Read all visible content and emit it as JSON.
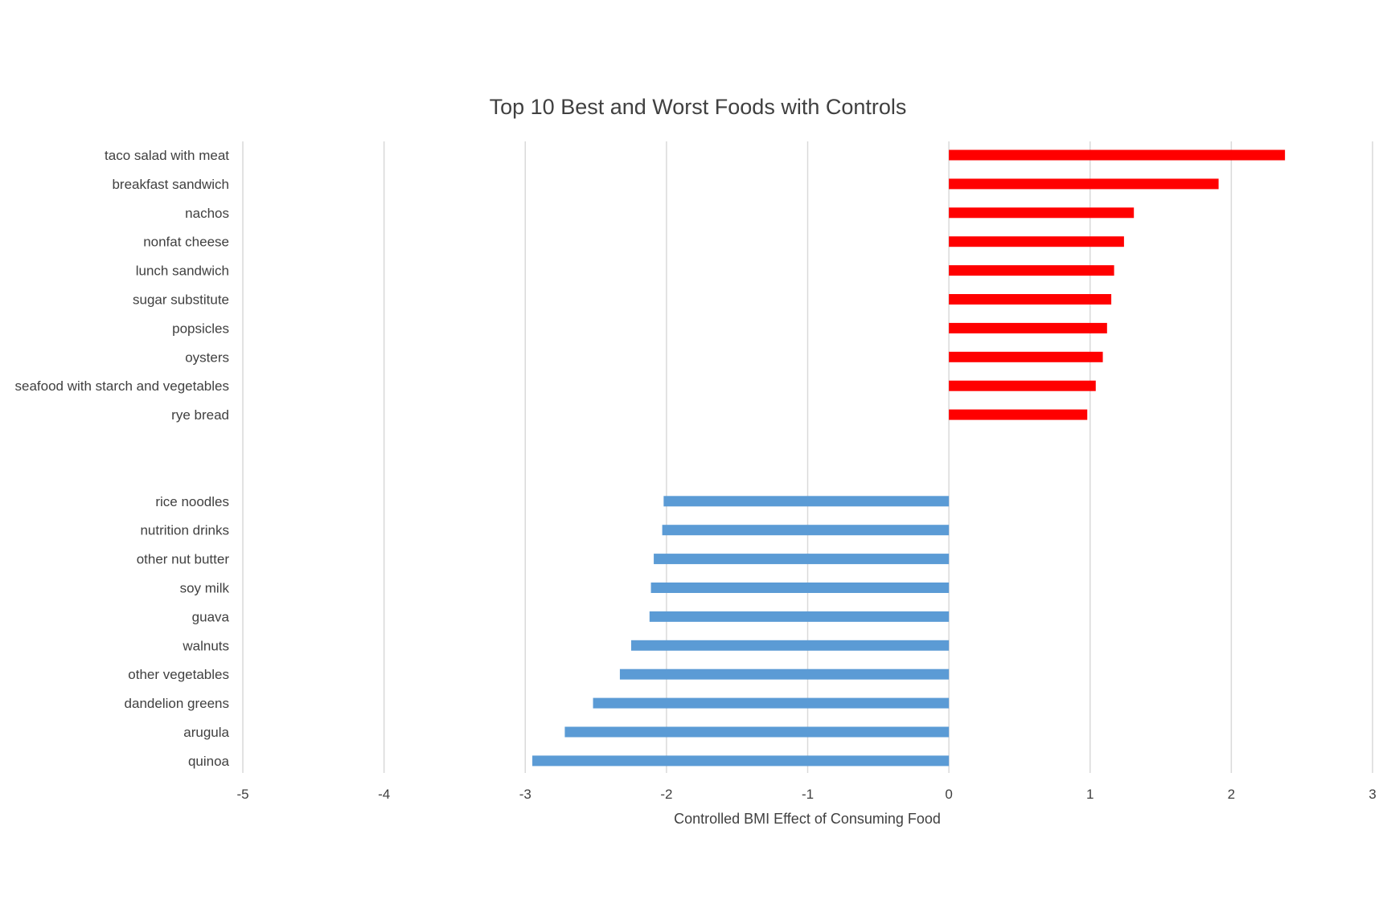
{
  "chart_data": {
    "type": "bar",
    "orientation": "horizontal",
    "title": "Top 10 Best and Worst Foods with Controls",
    "xlabel": "Controlled BMI Effect of Consuming Food",
    "ylabel": "",
    "xlim": [
      -5,
      3
    ],
    "xticks": [
      "-5",
      "-4",
      "-3",
      "-2",
      "-1",
      "0",
      "1",
      "2",
      "3"
    ],
    "grid": true,
    "legend": "none",
    "categories": [
      "taco salad with meat",
      "breakfast sandwich",
      "nachos",
      "nonfat cheese",
      "lunch sandwich",
      "sugar substitute",
      "popsicles",
      "oysters",
      "seafood with starch and vegetables",
      "rye bread",
      "",
      "",
      "rice noodles",
      "nutrition drinks",
      "other nut butter",
      "soy milk",
      "guava",
      "walnuts",
      "other vegetables",
      "dandelion greens",
      "arugula",
      "quinoa"
    ],
    "values": [
      2.38,
      1.91,
      1.31,
      1.24,
      1.17,
      1.15,
      1.12,
      1.09,
      1.04,
      0.98,
      null,
      null,
      -2.02,
      -2.03,
      -2.09,
      -2.11,
      -2.12,
      -2.25,
      -2.33,
      -2.52,
      -2.72,
      -2.95
    ],
    "colors": {
      "positive": "#ff0000",
      "negative": "#5b9bd5",
      "grid": "#d9d9d9",
      "text": "#404040"
    }
  }
}
